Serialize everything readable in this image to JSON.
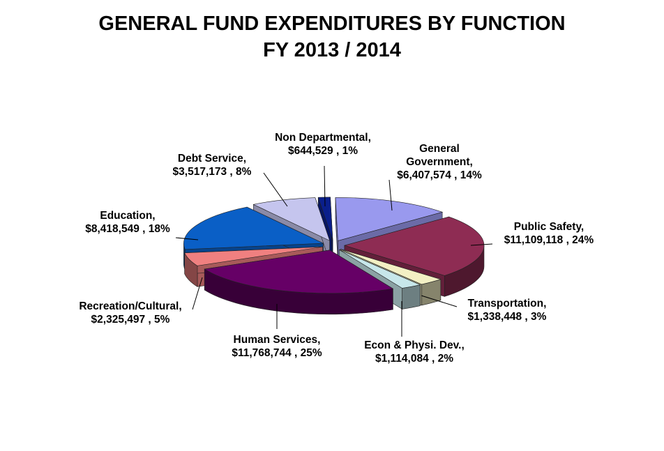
{
  "chart_data": {
    "type": "pie",
    "title": "GENERAL FUND EXPENDITURES  BY FUNCTION",
    "subtitle": "FY 2013 / 2014",
    "slices": [
      {
        "name": "General Government",
        "value": 6407574,
        "value_label": "$6,407,574",
        "percent_label": "14%",
        "color": "#9999ee"
      },
      {
        "name": "Public Safety",
        "value": 11109118,
        "value_label": "$11,109,118",
        "percent_label": "24%",
        "color": "#8e2c53"
      },
      {
        "name": "Transportation",
        "value": 1338448,
        "value_label": "$1,338,448",
        "percent_label": "3%",
        "color": "#f3f0c4"
      },
      {
        "name": "Econ & Physi. Dev.",
        "value": 1114084,
        "value_label": "$1,114,084",
        "percent_label": "2%",
        "color": "#c7e7ea"
      },
      {
        "name": "Human Services",
        "value": 11768744,
        "value_label": "$11,768,744",
        "percent_label": "25%",
        "color": "#660066"
      },
      {
        "name": "Recreation/Cultural",
        "value": 2325497,
        "value_label": "$2,325,497",
        "percent_label": "5%",
        "color": "#f08080"
      },
      {
        "name": "Education",
        "value": 8418549,
        "value_label": "$8,418,549",
        "percent_label": "18%",
        "color": "#0a5fc6"
      },
      {
        "name": "Debt Service",
        "value": 3517173,
        "value_label": "$3,517,173",
        "percent_label": "8%",
        "color": "#c5c5ee"
      },
      {
        "name": "Non Departmental",
        "value": 644529,
        "value_label": "$644,529",
        "percent_label": "1%",
        "color": "#0a1f8c"
      }
    ],
    "labels": [
      {
        "line1": "General",
        "line2": "Government,",
        "line3": "$6,407,574 , 14%"
      },
      {
        "line1": "Public Safety,",
        "line2": "$11,109,118 , 24%"
      },
      {
        "line1": "Transportation,",
        "line2": "$1,338,448 , 3%"
      },
      {
        "line1": "Econ & Physi. Dev.,",
        "line2": "$1,114,084 , 2%"
      },
      {
        "line1": "Human Services,",
        "line2": "$11,768,744 , 25%"
      },
      {
        "line1": "Recreation/Cultural,",
        "line2": "$2,325,497 , 5%"
      },
      {
        "line1": "Education,",
        "line2": "$8,418,549 , 18%"
      },
      {
        "line1": "Debt Service,",
        "line2": "$3,517,173 , 8%"
      },
      {
        "line1": "Non Departmental,",
        "line2": "$644,529 , 1%"
      }
    ]
  }
}
